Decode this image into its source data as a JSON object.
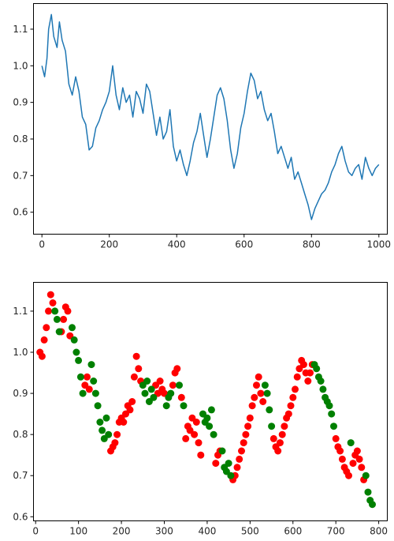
{
  "colors": {
    "line": "#1f77b4",
    "scatter_up": "#ff0000",
    "scatter_down": "#008000"
  },
  "chart_data": [
    {
      "type": "line",
      "title": "",
      "xlabel": "",
      "ylabel": "",
      "xlim": [
        -25,
        1025
      ],
      "ylim": [
        0.54,
        1.17
      ],
      "xticks": [
        0,
        200,
        400,
        600,
        800,
        1000
      ],
      "yticks": [
        0.6,
        0.7,
        0.8,
        0.9,
        1.0,
        1.1
      ],
      "xtick_labels": [
        "0",
        "200",
        "400",
        "600",
        "800",
        "1000"
      ],
      "ytick_labels": [
        "0.6",
        "0.7",
        "0.8",
        "0.9",
        "1.0",
        "1.1"
      ],
      "grid": false,
      "series": [
        {
          "color": "#1f77b4",
          "x": [
            0,
            8,
            15,
            20,
            28,
            35,
            45,
            52,
            60,
            70,
            80,
            90,
            100,
            110,
            120,
            130,
            140,
            150,
            160,
            170,
            180,
            190,
            200,
            210,
            220,
            230,
            240,
            250,
            260,
            270,
            280,
            290,
            300,
            310,
            320,
            330,
            340,
            350,
            360,
            370,
            380,
            390,
            400,
            410,
            420,
            430,
            440,
            450,
            460,
            470,
            480,
            490,
            500,
            510,
            520,
            530,
            540,
            550,
            560,
            570,
            580,
            590,
            600,
            610,
            620,
            630,
            640,
            650,
            660,
            670,
            680,
            690,
            700,
            710,
            720,
            730,
            740,
            750,
            760,
            770,
            780,
            790,
            800,
            810,
            820,
            830,
            840,
            850,
            860,
            870,
            880,
            890,
            900,
            910,
            920,
            930,
            940,
            950,
            960,
            970,
            980,
            990,
            1000
          ],
          "y": [
            1.0,
            0.97,
            1.02,
            1.1,
            1.14,
            1.08,
            1.05,
            1.12,
            1.07,
            1.04,
            0.95,
            0.92,
            0.97,
            0.93,
            0.86,
            0.84,
            0.77,
            0.78,
            0.83,
            0.85,
            0.88,
            0.9,
            0.93,
            1.0,
            0.92,
            0.88,
            0.94,
            0.9,
            0.92,
            0.86,
            0.93,
            0.91,
            0.87,
            0.95,
            0.93,
            0.87,
            0.81,
            0.86,
            0.8,
            0.82,
            0.88,
            0.78,
            0.74,
            0.77,
            0.73,
            0.7,
            0.74,
            0.79,
            0.82,
            0.87,
            0.81,
            0.75,
            0.8,
            0.86,
            0.92,
            0.94,
            0.91,
            0.85,
            0.77,
            0.72,
            0.76,
            0.83,
            0.87,
            0.93,
            0.98,
            0.96,
            0.91,
            0.93,
            0.88,
            0.85,
            0.87,
            0.82,
            0.76,
            0.78,
            0.75,
            0.72,
            0.75,
            0.69,
            0.71,
            0.68,
            0.65,
            0.62,
            0.58,
            0.61,
            0.63,
            0.65,
            0.66,
            0.68,
            0.71,
            0.73,
            0.76,
            0.78,
            0.74,
            0.71,
            0.7,
            0.72,
            0.73,
            0.69,
            0.75,
            0.72,
            0.7,
            0.72,
            0.73
          ]
        }
      ]
    },
    {
      "type": "scatter",
      "title": "",
      "xlabel": "",
      "ylabel": "",
      "xlim": [
        -5,
        820
      ],
      "ylim": [
        0.59,
        1.17
      ],
      "xticks": [
        0,
        100,
        200,
        300,
        400,
        500,
        600,
        700,
        800
      ],
      "yticks": [
        0.6,
        0.7,
        0.8,
        0.9,
        1.0,
        1.1
      ],
      "xtick_labels": [
        "0",
        "100",
        "200",
        "300",
        "400",
        "500",
        "600",
        "700",
        "800"
      ],
      "ytick_labels": [
        "0.6",
        "0.7",
        "0.8",
        "0.9",
        "1.0",
        "1.1"
      ],
      "grid": false,
      "series": [
        {
          "color": "#ff0000",
          "x": [
            10,
            15,
            20,
            25,
            30,
            35,
            40,
            60,
            65,
            70,
            75,
            80,
            115,
            120,
            125,
            175,
            180,
            185,
            190,
            195,
            200,
            205,
            210,
            215,
            220,
            225,
            230,
            235,
            240,
            245,
            280,
            285,
            290,
            295,
            300,
            320,
            325,
            330,
            340,
            350,
            355,
            360,
            365,
            370,
            375,
            380,
            385,
            420,
            425,
            430,
            460,
            465,
            470,
            475,
            480,
            485,
            490,
            495,
            500,
            505,
            510,
            515,
            520,
            525,
            530,
            555,
            560,
            565,
            570,
            575,
            580,
            585,
            590,
            595,
            600,
            605,
            610,
            615,
            620,
            625,
            630,
            635,
            640,
            645,
            700,
            705,
            710,
            715,
            720,
            725,
            730,
            740,
            745,
            750,
            755,
            760,
            765
          ],
          "y": [
            1.0,
            0.99,
            1.03,
            1.06,
            1.1,
            1.14,
            1.12,
            1.05,
            1.08,
            1.11,
            1.1,
            1.04,
            0.92,
            0.94,
            0.91,
            0.76,
            0.77,
            0.78,
            0.8,
            0.83,
            0.84,
            0.83,
            0.85,
            0.87,
            0.86,
            0.88,
            0.94,
            0.99,
            0.96,
            0.93,
            0.92,
            0.9,
            0.93,
            0.91,
            0.9,
            0.92,
            0.95,
            0.96,
            0.89,
            0.79,
            0.82,
            0.81,
            0.84,
            0.8,
            0.83,
            0.78,
            0.75,
            0.73,
            0.75,
            0.76,
            0.69,
            0.7,
            0.72,
            0.74,
            0.76,
            0.78,
            0.8,
            0.82,
            0.84,
            0.87,
            0.89,
            0.92,
            0.94,
            0.9,
            0.88,
            0.79,
            0.77,
            0.76,
            0.78,
            0.8,
            0.82,
            0.84,
            0.85,
            0.87,
            0.89,
            0.91,
            0.94,
            0.96,
            0.98,
            0.97,
            0.95,
            0.93,
            0.95,
            0.97,
            0.79,
            0.77,
            0.76,
            0.74,
            0.72,
            0.71,
            0.7,
            0.73,
            0.75,
            0.76,
            0.74,
            0.72,
            0.69
          ]
        },
        {
          "color": "#008000",
          "x": [
            45,
            50,
            55,
            85,
            90,
            95,
            100,
            105,
            110,
            130,
            135,
            140,
            145,
            150,
            155,
            160,
            165,
            170,
            250,
            255,
            260,
            265,
            270,
            275,
            305,
            310,
            315,
            335,
            345,
            390,
            395,
            400,
            405,
            410,
            415,
            435,
            440,
            445,
            450,
            455,
            535,
            540,
            545,
            550,
            650,
            655,
            660,
            665,
            670,
            675,
            680,
            685,
            690,
            695,
            735,
            770,
            775,
            780,
            785
          ],
          "y": [
            1.1,
            1.08,
            1.05,
            1.06,
            1.03,
            1.0,
            0.98,
            0.94,
            0.9,
            0.97,
            0.93,
            0.9,
            0.87,
            0.83,
            0.81,
            0.79,
            0.84,
            0.8,
            0.92,
            0.9,
            0.93,
            0.88,
            0.91,
            0.89,
            0.87,
            0.89,
            0.9,
            0.92,
            0.87,
            0.85,
            0.83,
            0.84,
            0.82,
            0.86,
            0.8,
            0.76,
            0.72,
            0.71,
            0.73,
            0.7,
            0.92,
            0.9,
            0.86,
            0.82,
            0.97,
            0.96,
            0.94,
            0.93,
            0.91,
            0.89,
            0.88,
            0.87,
            0.85,
            0.82,
            0.78,
            0.7,
            0.66,
            0.64,
            0.63
          ]
        }
      ]
    }
  ]
}
